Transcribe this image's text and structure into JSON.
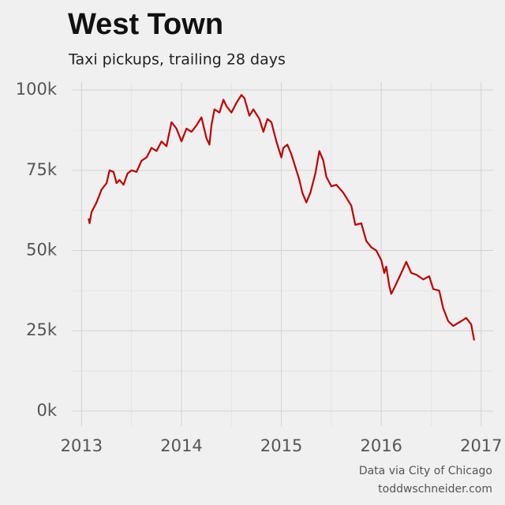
{
  "chart_data": {
    "type": "line",
    "title": "West Town",
    "subtitle": "Taxi pickups, trailing 28 days",
    "notes": [
      "Data via City of Chicago",
      "toddwschneider.com"
    ],
    "x": [
      2013.07,
      2013.08,
      2013.1,
      2013.15,
      2013.2,
      2013.25,
      2013.28,
      2013.32,
      2013.35,
      2013.38,
      2013.42,
      2013.46,
      2013.5,
      2013.55,
      2013.6,
      2013.65,
      2013.7,
      2013.75,
      2013.8,
      2013.85,
      2013.9,
      2013.95,
      2014.0,
      2014.05,
      2014.1,
      2014.15,
      2014.2,
      2014.25,
      2014.28,
      2014.3,
      2014.33,
      2014.38,
      2014.42,
      2014.45,
      2014.5,
      2014.55,
      2014.6,
      2014.63,
      2014.68,
      2014.72,
      2014.78,
      2014.82,
      2014.86,
      2014.9,
      2014.95,
      2015.0,
      2015.02,
      2015.06,
      2015.1,
      2015.13,
      2015.18,
      2015.21,
      2015.25,
      2015.29,
      2015.34,
      2015.38,
      2015.42,
      2015.45,
      2015.5,
      2015.55,
      2015.62,
      2015.7,
      2015.74,
      2015.8,
      2015.85,
      2015.9,
      2015.95,
      2016.0,
      2016.03,
      2016.05,
      2016.08,
      2016.1,
      2016.14,
      2016.2,
      2016.25,
      2016.3,
      2016.35,
      2016.42,
      2016.48,
      2016.52,
      2016.58,
      2016.62,
      2016.67,
      2016.72,
      2016.8,
      2016.85,
      2016.9,
      2016.93
    ],
    "series": [
      {
        "name": "West Town",
        "color": "#c00000",
        "values": [
          60000,
          58500,
          62000,
          65000,
          69000,
          71000,
          75000,
          74500,
          71000,
          72000,
          70500,
          74000,
          75000,
          74500,
          78000,
          79000,
          82000,
          81000,
          84000,
          82500,
          90000,
          88000,
          84000,
          88000,
          87000,
          89000,
          91500,
          85000,
          83000,
          89000,
          94000,
          93000,
          97000,
          95000,
          93000,
          96000,
          98500,
          97500,
          92000,
          94000,
          91000,
          87000,
          91000,
          90000,
          84000,
          79000,
          82000,
          83000,
          80000,
          77000,
          72000,
          68000,
          65000,
          68000,
          74000,
          81000,
          78000,
          73000,
          70000,
          70500,
          68000,
          64000,
          58000,
          58500,
          53000,
          51000,
          50000,
          47000,
          43000,
          45000,
          39000,
          36500,
          39000,
          43000,
          46500,
          43000,
          42500,
          41000,
          42000,
          38000,
          37500,
          32000,
          28000,
          26500,
          28000,
          29000,
          27000,
          22000
        ]
      }
    ],
    "xlim": [
      2012.91,
      2017.12
    ],
    "xticks": [
      2013,
      2014,
      2015,
      2016,
      2017
    ],
    "minor_xticks": [
      2013.5,
      2014.5,
      2015.5,
      2016.5
    ],
    "ylim": [
      -4700,
      102500
    ],
    "yticks": [
      {
        "value": 0,
        "label": "0k"
      },
      {
        "value": 25000,
        "label": "25k"
      },
      {
        "value": 50000,
        "label": "50k"
      },
      {
        "value": 75000,
        "label": "75k"
      },
      {
        "value": 100000,
        "label": "100k"
      }
    ],
    "minor_yticks": [
      12500,
      37500,
      62500,
      87500
    ],
    "grid": true
  }
}
